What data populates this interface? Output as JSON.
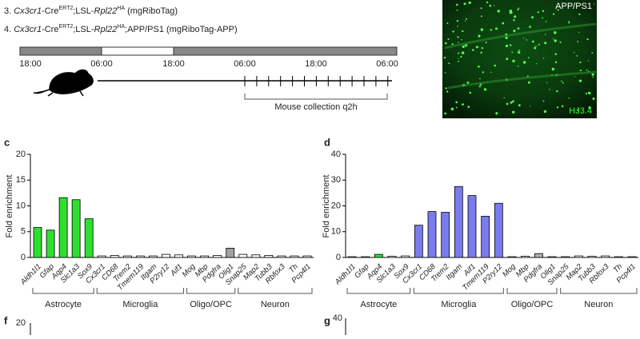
{
  "figure": {
    "line3": [
      "3. ",
      "Cx3cr1",
      "-Cre",
      "ERT2",
      ";LSL-",
      "Rpl22",
      "HA",
      " (mgRiboTag)"
    ],
    "line4": [
      "4. ",
      "Cx3cr1",
      "-Cre",
      "ERT2",
      ";LSL-",
      "Rpl22",
      "HA",
      ";APP/PS1 (mgRiboTag-APP)"
    ],
    "times": [
      "18:00",
      "06:00",
      "18:00",
      "06:00",
      "18:00",
      "06:00"
    ],
    "collection": "Mouse collection q2h",
    "image_label_top": "APP/PS1",
    "image_label_bottom": "HJ3.4"
  },
  "chart_data": [
    {
      "type": "bar",
      "panel": "c",
      "y_label": "Fold enrichment",
      "categories": [
        "Aldh1l1",
        "Gfap",
        "Aqp4",
        "Slc1a3",
        "Sox9",
        "Cx3cr1",
        "CD68",
        "Trem2",
        "Tmem119",
        "Itgam",
        "P2ry12",
        "Aif1",
        "Mog",
        "Mbp",
        "Pdgfra",
        "Olig1",
        "Snap25",
        "Map2",
        "Tubb3",
        "Rbfox3",
        "Th",
        "Pcp4l1"
      ],
      "values": [
        5.8,
        5.3,
        11.6,
        11.2,
        7.5,
        0.3,
        0.4,
        0.3,
        0.3,
        0.3,
        0.6,
        0.5,
        0.3,
        0.3,
        0.4,
        1.8,
        0.6,
        0.5,
        0.4,
        0.3,
        0.3,
        0.3
      ],
      "colors": [
        "#2ee02e",
        "#2ee02e",
        "#2ee02e",
        "#2ee02e",
        "#2ee02e",
        "#ffffff",
        "#ffffff",
        "#ffffff",
        "#ffffff",
        "#ffffff",
        "#ffffff",
        "#ffffff",
        "#ffffff",
        "#ffffff",
        "#ffffff",
        "#a0a0a0",
        "#ffffff",
        "#ffffff",
        "#ffffff",
        "#ffffff",
        "#ffffff",
        "#ffffff"
      ],
      "groups": [
        "Astrocyte",
        "Microglia",
        "Oligo/OPC",
        "Neuron"
      ],
      "ylim": [
        0,
        20
      ],
      "yticks": [
        0,
        5,
        10,
        15,
        20
      ]
    },
    {
      "type": "bar",
      "panel": "d",
      "y_label": "Fold enrichment",
      "categories": [
        "Aldh1l1",
        "Gfap",
        "Aqp4",
        "Slc1a3",
        "Sox9",
        "Cx3cr1",
        "CD68",
        "Trem2",
        "Itgam",
        "Aif1",
        "Tmem119",
        "P2ry12",
        "Mog",
        "Mbp",
        "Pdgfra",
        "Olig1",
        "Snap25",
        "Map2",
        "Tubb3",
        "Rbfox3",
        "Th",
        "Pcp4l1"
      ],
      "values": [
        0.3,
        0.3,
        1.2,
        0.5,
        0.6,
        12.5,
        17.8,
        17.5,
        27.5,
        24,
        16,
        21,
        0.3,
        0.5,
        1.5,
        0.3,
        0.3,
        0.6,
        0.5,
        0.6,
        0.3,
        0.3
      ],
      "colors": [
        "#ffffff",
        "#ffffff",
        "#2ee02e",
        "#ffffff",
        "#ffffff",
        "#7b7bf0",
        "#7b7bf0",
        "#7b7bf0",
        "#7b7bf0",
        "#7b7bf0",
        "#7b7bf0",
        "#7b7bf0",
        "#ffffff",
        "#ffffff",
        "#b0b0b0",
        "#ffffff",
        "#ffffff",
        "#ffffff",
        "#ffffff",
        "#ffffff",
        "#ffffff",
        "#ffffff"
      ],
      "groups": [
        "Astrocyte",
        "Microglia",
        "Oligo/OPC",
        "Neuron"
      ],
      "ylim": [
        0,
        40
      ],
      "yticks": [
        0,
        10,
        20,
        30,
        40
      ]
    }
  ],
  "bottom": {
    "f": "f",
    "f_tick": 20,
    "g": "g",
    "g_tick": 40
  }
}
